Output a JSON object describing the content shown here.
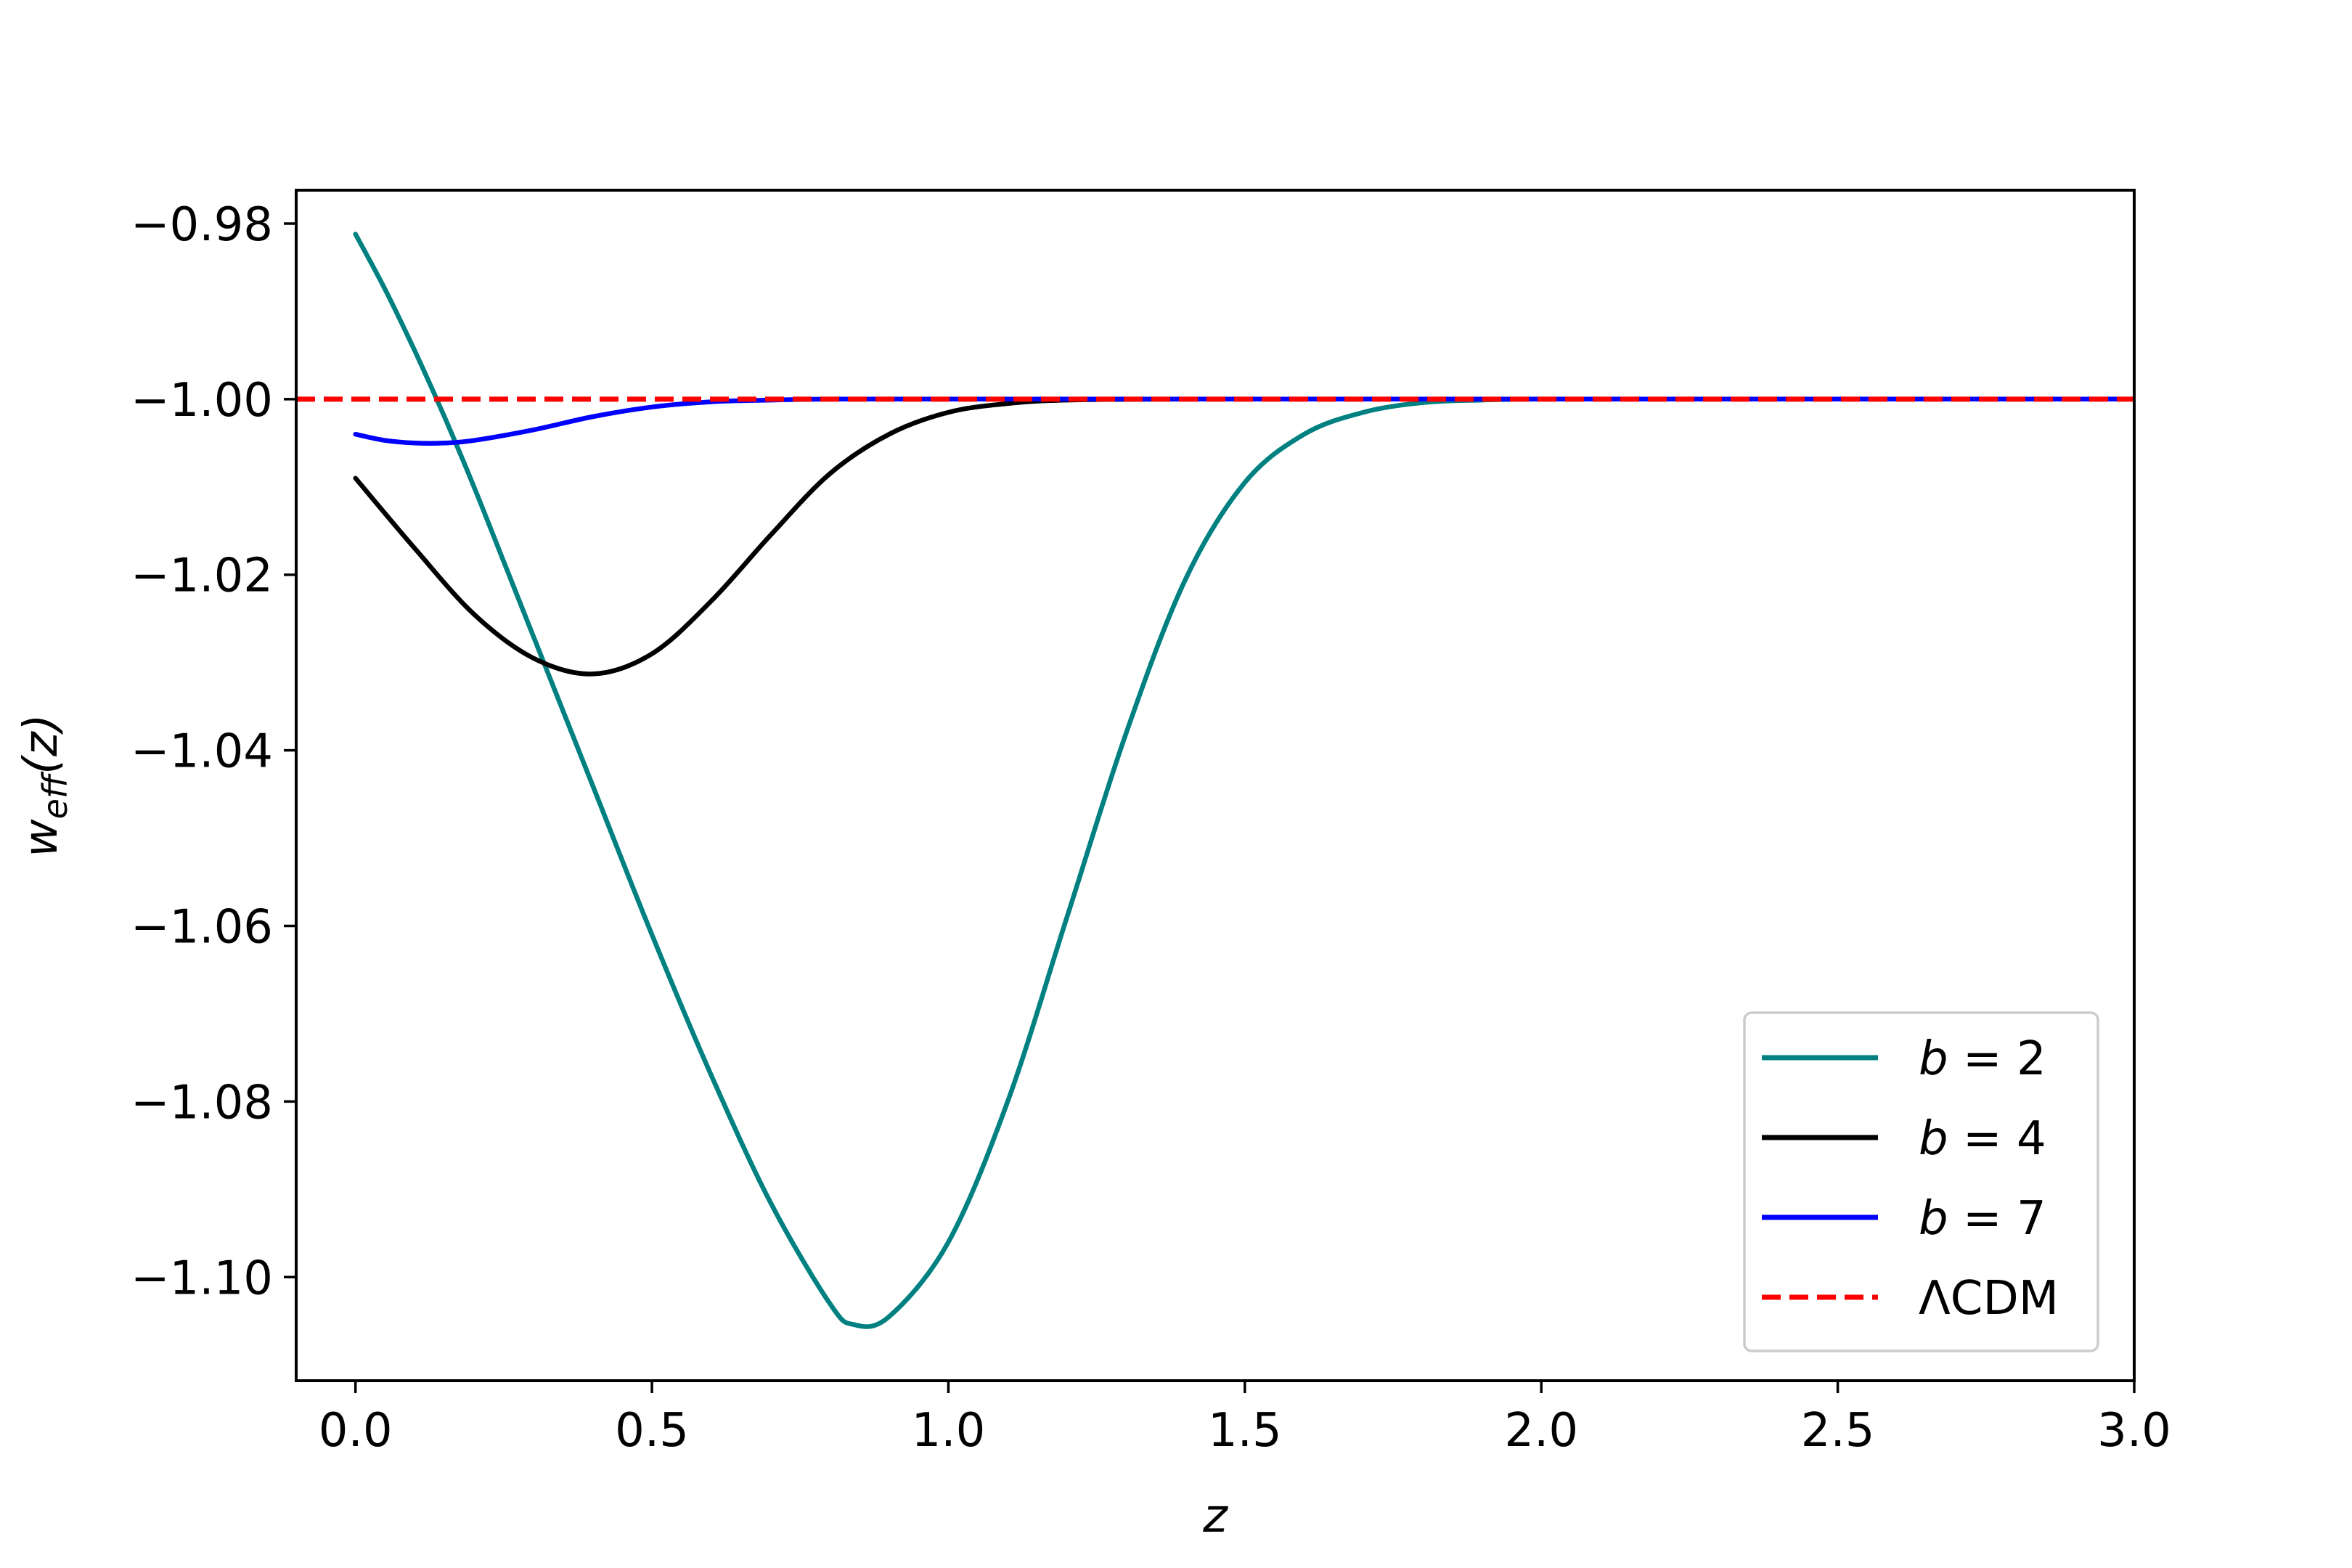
{
  "chart_data": {
    "type": "line",
    "title": "",
    "xlabel": "z",
    "ylabel": {
      "main": "w",
      "sub": "eff",
      "arg": "(z)"
    },
    "xlim": [
      -0.1,
      3.0
    ],
    "ylim": [
      -1.1118,
      -0.9762
    ],
    "xticks": [
      0.0,
      0.5,
      1.0,
      1.5,
      2.0,
      2.5,
      3.0
    ],
    "xtick_labels": [
      "0.0",
      "0.5",
      "1.0",
      "1.5",
      "2.0",
      "2.5",
      "3.0"
    ],
    "yticks": [
      -0.98,
      -1.0,
      -1.02,
      -1.04,
      -1.06,
      -1.08,
      -1.1
    ],
    "ytick_labels": [
      "−0.98",
      "−1.00",
      "−1.02",
      "−1.04",
      "−1.06",
      "−1.08",
      "−1.10"
    ],
    "grid": false,
    "legend_position": "lower-right",
    "series": [
      {
        "name": "b = 2",
        "label_var": "b",
        "label_rest": " = 2",
        "color": "#008080",
        "dash": "solid",
        "x": [
          0.0,
          0.05,
          0.1,
          0.15,
          0.2,
          0.25,
          0.3,
          0.4,
          0.5,
          0.6,
          0.7,
          0.8,
          0.84,
          0.9,
          1.0,
          1.1,
          1.2,
          1.3,
          1.4,
          1.5,
          1.6,
          1.7,
          1.8,
          1.9,
          2.0,
          2.2,
          2.5,
          3.0
        ],
        "y": [
          -0.9812,
          -0.9875,
          -0.9945,
          -1.002,
          -1.01,
          -1.0185,
          -1.027,
          -1.044,
          -1.061,
          -1.077,
          -1.0915,
          -1.103,
          -1.1054,
          -1.1045,
          -1.096,
          -1.08,
          -1.059,
          -1.038,
          -1.0205,
          -1.0095,
          -1.004,
          -1.0015,
          -1.0004,
          -1.0001,
          -1.0,
          -1.0,
          -1.0,
          -1.0
        ]
      },
      {
        "name": "b = 4",
        "label_var": "b",
        "label_rest": " = 4",
        "color": "#000000",
        "dash": "solid",
        "x": [
          0.0,
          0.1,
          0.2,
          0.3,
          0.4,
          0.5,
          0.6,
          0.7,
          0.8,
          0.9,
          1.0,
          1.1,
          1.2,
          1.4,
          1.7,
          2.0,
          2.5,
          3.0
        ],
        "y": [
          -1.009,
          -1.017,
          -1.0245,
          -1.0295,
          -1.0313,
          -1.029,
          -1.023,
          -1.0155,
          -1.0085,
          -1.004,
          -1.0015,
          -1.0005,
          -1.0001,
          -1.0,
          -1.0,
          -1.0,
          -1.0,
          -1.0
        ]
      },
      {
        "name": "b = 7",
        "label_var": "b",
        "label_rest": " = 7",
        "color": "#0000ff",
        "dash": "solid",
        "x": [
          0.0,
          0.05,
          0.1,
          0.15,
          0.2,
          0.3,
          0.4,
          0.5,
          0.6,
          0.7,
          0.8,
          1.0,
          1.5,
          2.0,
          2.5,
          3.0
        ],
        "y": [
          -1.004,
          -1.0047,
          -1.005,
          -1.005,
          -1.0047,
          -1.0035,
          -1.002,
          -1.0009,
          -1.0003,
          -1.0001,
          -1.0,
          -1.0,
          -1.0,
          -1.0,
          -1.0,
          -1.0
        ]
      },
      {
        "name": "ΛCDM",
        "label_var": "",
        "label_rest": "ΛCDM",
        "color": "#ff0000",
        "dash": "dashed",
        "x": [
          -0.1,
          3.0
        ],
        "y": [
          -1.0,
          -1.0
        ]
      }
    ]
  }
}
